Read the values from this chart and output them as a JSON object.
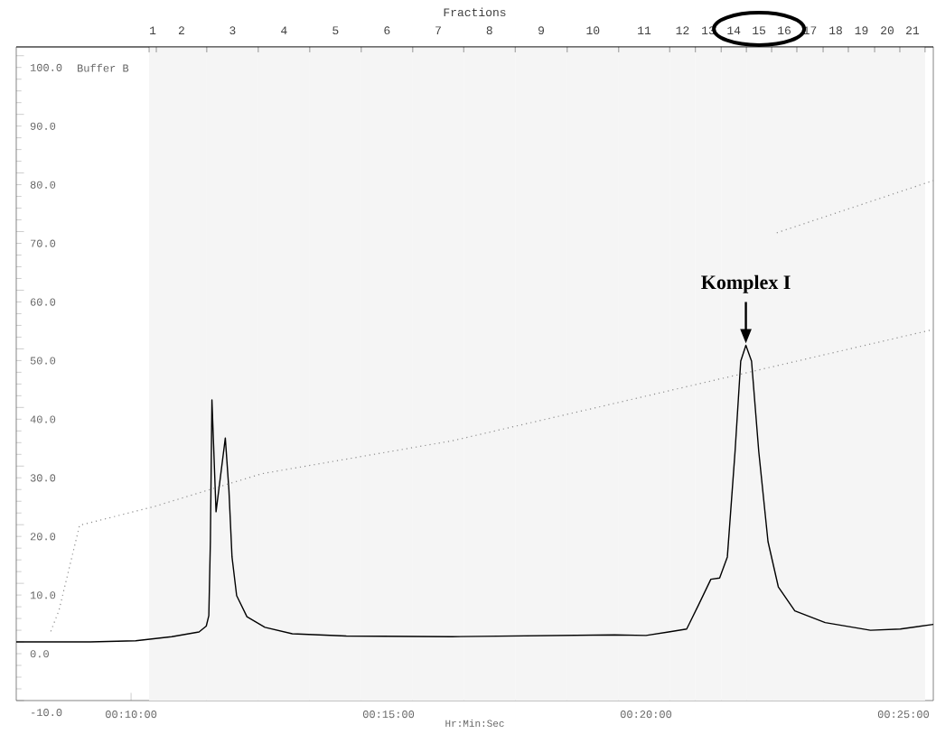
{
  "chart_data": {
    "type": "line",
    "xlabel": "Hr:Min:Sec",
    "grid": false,
    "xlim": [
      7.77,
      25.58
    ],
    "ylim": [
      -10,
      101.5
    ],
    "xticks": [
      {
        "value": 10,
        "label": "00:10:00"
      },
      {
        "value": 15,
        "label": "00:15:00"
      },
      {
        "value": 20,
        "label": "00:20:00"
      },
      {
        "value": 25,
        "label": "00:25:00"
      }
    ],
    "yticks": [
      {
        "value": -10,
        "label": "-10.0"
      },
      {
        "value": 0,
        "label": "0.0"
      },
      {
        "value": 10,
        "label": "10.0"
      },
      {
        "value": 20,
        "label": "20.0"
      },
      {
        "value": 30,
        "label": "30.0"
      },
      {
        "value": 40,
        "label": "40.0"
      },
      {
        "value": 50,
        "label": "50.0"
      },
      {
        "value": 60,
        "label": "60.0"
      },
      {
        "value": 70,
        "label": "70.0"
      },
      {
        "value": 80,
        "label": "80.0"
      },
      {
        "value": 90,
        "label": "90.0"
      },
      {
        "value": 100,
        "label": "100.0"
      }
    ],
    "bands": [
      {
        "axis": "x",
        "from": 10.35,
        "to": 10.49,
        "label": "1"
      },
      {
        "axis": "x",
        "from": 10.49,
        "to": 11.47,
        "label": "2"
      },
      {
        "axis": "x",
        "from": 11.47,
        "to": 12.47,
        "label": "3"
      },
      {
        "axis": "x",
        "from": 12.47,
        "to": 13.47,
        "label": "4"
      },
      {
        "axis": "x",
        "from": 13.47,
        "to": 14.47,
        "label": "5"
      },
      {
        "axis": "x",
        "from": 14.47,
        "to": 15.47,
        "label": "6"
      },
      {
        "axis": "x",
        "from": 15.47,
        "to": 16.46,
        "label": "7"
      },
      {
        "axis": "x",
        "from": 16.46,
        "to": 17.46,
        "label": "8"
      },
      {
        "axis": "x",
        "from": 17.46,
        "to": 18.47,
        "label": "9"
      },
      {
        "axis": "x",
        "from": 18.47,
        "to": 19.47,
        "label": "10"
      },
      {
        "axis": "x",
        "from": 19.47,
        "to": 20.46,
        "label": "11"
      },
      {
        "axis": "x",
        "from": 20.46,
        "to": 20.96,
        "label": "12"
      },
      {
        "axis": "x",
        "from": 20.96,
        "to": 21.46,
        "label": "13"
      },
      {
        "axis": "x",
        "from": 21.46,
        "to": 21.95,
        "label": "14"
      },
      {
        "axis": "x",
        "from": 21.95,
        "to": 22.44,
        "label": "15"
      },
      {
        "axis": "x",
        "from": 22.44,
        "to": 22.93,
        "label": "16"
      },
      {
        "axis": "x",
        "from": 22.93,
        "to": 23.44,
        "label": "17"
      },
      {
        "axis": "x",
        "from": 23.44,
        "to": 23.93,
        "label": "18"
      },
      {
        "axis": "x",
        "from": 23.93,
        "to": 24.44,
        "label": "19"
      },
      {
        "axis": "x",
        "from": 24.44,
        "to": 24.93,
        "label": "20"
      },
      {
        "axis": "x",
        "from": 24.93,
        "to": 25.42,
        "label": "21"
      }
    ],
    "series": [
      {
        "color": "#000000",
        "line_style": "solid",
        "x": [
          7.77,
          9.21,
          10.09,
          10.79,
          11.32,
          11.46,
          11.51,
          11.54,
          11.57,
          11.65,
          11.83,
          11.9,
          11.96,
          12.05,
          12.25,
          12.6,
          13.13,
          14.18,
          16.23,
          19.39,
          20.0,
          20.44,
          20.79,
          21.02,
          21.26,
          21.43,
          21.58,
          21.73,
          21.84,
          21.94,
          22.05,
          22.19,
          22.37,
          22.57,
          22.89,
          23.48,
          24.36,
          24.94,
          25.58
        ],
        "values": [
          0,
          0,
          0.2,
          0.9,
          1.7,
          2.7,
          4.5,
          17.1,
          41.3,
          22.2,
          34.8,
          25.9,
          14.5,
          7.9,
          4.3,
          2.5,
          1.4,
          1.0,
          0.9,
          1.2,
          1.1,
          1.7,
          2.2,
          6.3,
          10.7,
          10.9,
          14.5,
          32.5,
          47.9,
          50.6,
          47.9,
          32.5,
          17.1,
          9.4,
          5.3,
          3.3,
          2.0,
          2.2,
          3.0
        ]
      },
      {
        "color": "#8c8c8c",
        "line_style": "dotted",
        "x": [
          8.44,
          8.6,
          9.0,
          10.45,
          12.54,
          16.23,
          19.39,
          25.58
        ],
        "values": [
          1.8,
          5.4,
          19.9,
          23.1,
          28.7,
          34.3,
          40.7,
          53.3
        ]
      },
      {
        "color": "#8c8c8c",
        "line_style": "dotted",
        "x": [
          22.54,
          25.58
        ],
        "values": [
          69.8,
          78.7
        ]
      }
    ],
    "annotations": [
      "Fractions",
      "Buffer B",
      {
        "text": "Komplex I",
        "x": 21.94,
        "y": 50.6
      }
    ]
  }
}
